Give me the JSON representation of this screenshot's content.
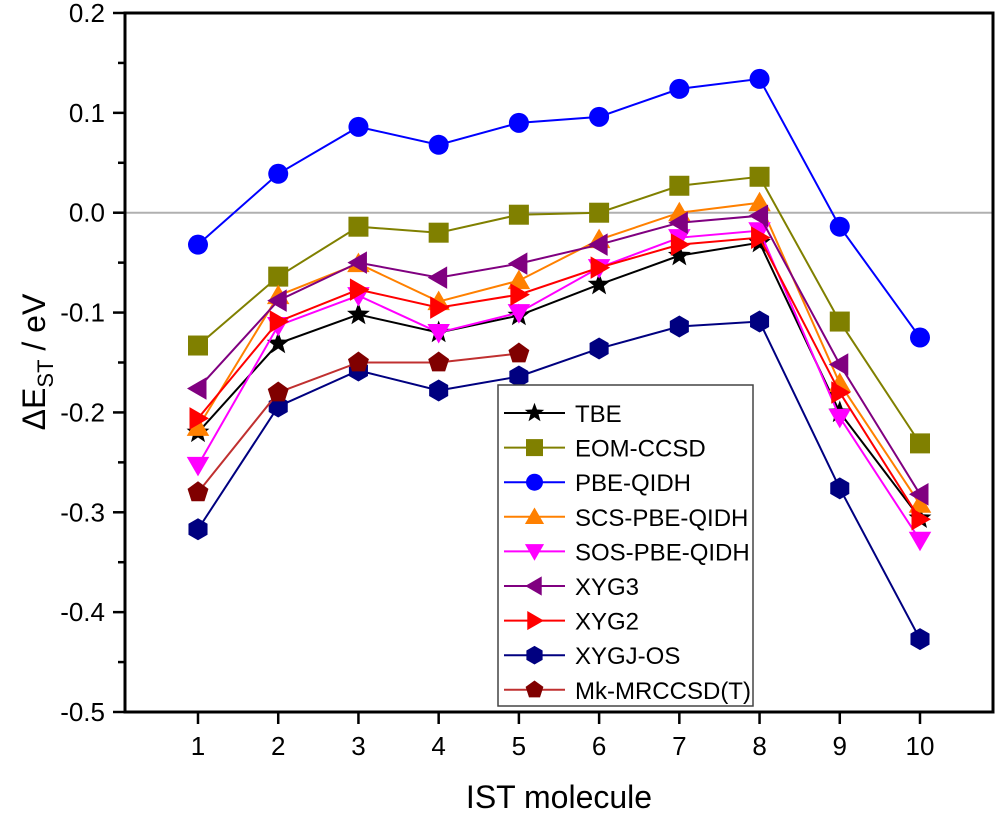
{
  "chart_data": {
    "type": "line",
    "title": "",
    "xlabel": "IST molecule",
    "ylabel_main": "ΔE",
    "ylabel_sub": "ST",
    "ylabel_unit": " / eV",
    "xlim": [
      0,
      11
    ],
    "ylim": [
      -0.5,
      0.2
    ],
    "x": [
      1,
      2,
      3,
      4,
      5,
      6,
      7,
      8,
      9,
      10
    ],
    "x_tick_labels": [
      "1",
      "2",
      "3",
      "4",
      "5",
      "6",
      "7",
      "8",
      "9",
      "10"
    ],
    "y_ticks": [
      0.2,
      0.1,
      0.0,
      -0.1,
      -0.2,
      -0.3,
      -0.4,
      -0.5
    ],
    "y_tick_labels": [
      "0.2",
      "0.1",
      "0.0",
      "-0.1",
      "-0.2",
      "-0.3",
      "-0.4",
      "-0.5"
    ],
    "y_minor_ticks": [
      0.15,
      0.05,
      -0.05,
      -0.15,
      -0.25,
      -0.35,
      -0.45
    ],
    "reference_line": {
      "y": 0.0,
      "color": "#b0b0b0"
    },
    "grid": false,
    "legend_position": "bottom-center",
    "series": [
      {
        "name": "TBE",
        "color": "#000000",
        "marker": "star",
        "values": [
          -0.22,
          -0.131,
          -0.102,
          -0.12,
          -0.103,
          -0.072,
          -0.043,
          -0.03,
          -0.2,
          -0.306
        ]
      },
      {
        "name": "EOM-CCSD",
        "color": "#808000",
        "marker": "square",
        "values": [
          -0.133,
          -0.064,
          -0.014,
          -0.02,
          -0.002,
          0.0,
          0.027,
          0.036,
          -0.109,
          -0.231
        ]
      },
      {
        "name": "PBE-QIDH",
        "color": "#0000ff",
        "marker": "circle",
        "values": [
          -0.032,
          0.039,
          0.086,
          0.068,
          0.09,
          0.096,
          0.124,
          0.134,
          -0.014,
          -0.125
        ]
      },
      {
        "name": "SCS-PBE-QIDH",
        "color": "#ff8000",
        "marker": "triangle-up",
        "values": [
          -0.215,
          -0.083,
          -0.051,
          -0.089,
          -0.068,
          -0.027,
          0.0,
          0.01,
          -0.171,
          -0.292
        ]
      },
      {
        "name": "SOS-PBE-QIDH",
        "color": "#ff00ff",
        "marker": "triangle-down",
        "values": [
          -0.253,
          -0.113,
          -0.083,
          -0.12,
          -0.1,
          -0.055,
          -0.025,
          -0.018,
          -0.205,
          -0.328
        ]
      },
      {
        "name": "XYG3",
        "color": "#800080",
        "marker": "triangle-left",
        "values": [
          -0.176,
          -0.088,
          -0.05,
          -0.065,
          -0.051,
          -0.032,
          -0.01,
          -0.003,
          -0.152,
          -0.282
        ]
      },
      {
        "name": "XYG2",
        "color": "#ff0000",
        "marker": "triangle-right",
        "values": [
          -0.206,
          -0.109,
          -0.077,
          -0.095,
          -0.082,
          -0.055,
          -0.032,
          -0.025,
          -0.18,
          -0.307
        ]
      },
      {
        "name": "XYGJ-OS",
        "color": "#000080",
        "marker": "hexagon",
        "values": [
          -0.317,
          -0.194,
          -0.158,
          -0.178,
          -0.164,
          -0.136,
          -0.114,
          -0.109,
          -0.276,
          -0.427
        ]
      },
      {
        "name": "Mk-MRCCSD(T)",
        "color": "#800000",
        "marker": "pentagon",
        "line_color": "#c03030",
        "values": [
          -0.28,
          -0.18,
          -0.15,
          -0.15,
          -0.141,
          null,
          null,
          null,
          null,
          null
        ]
      }
    ]
  }
}
